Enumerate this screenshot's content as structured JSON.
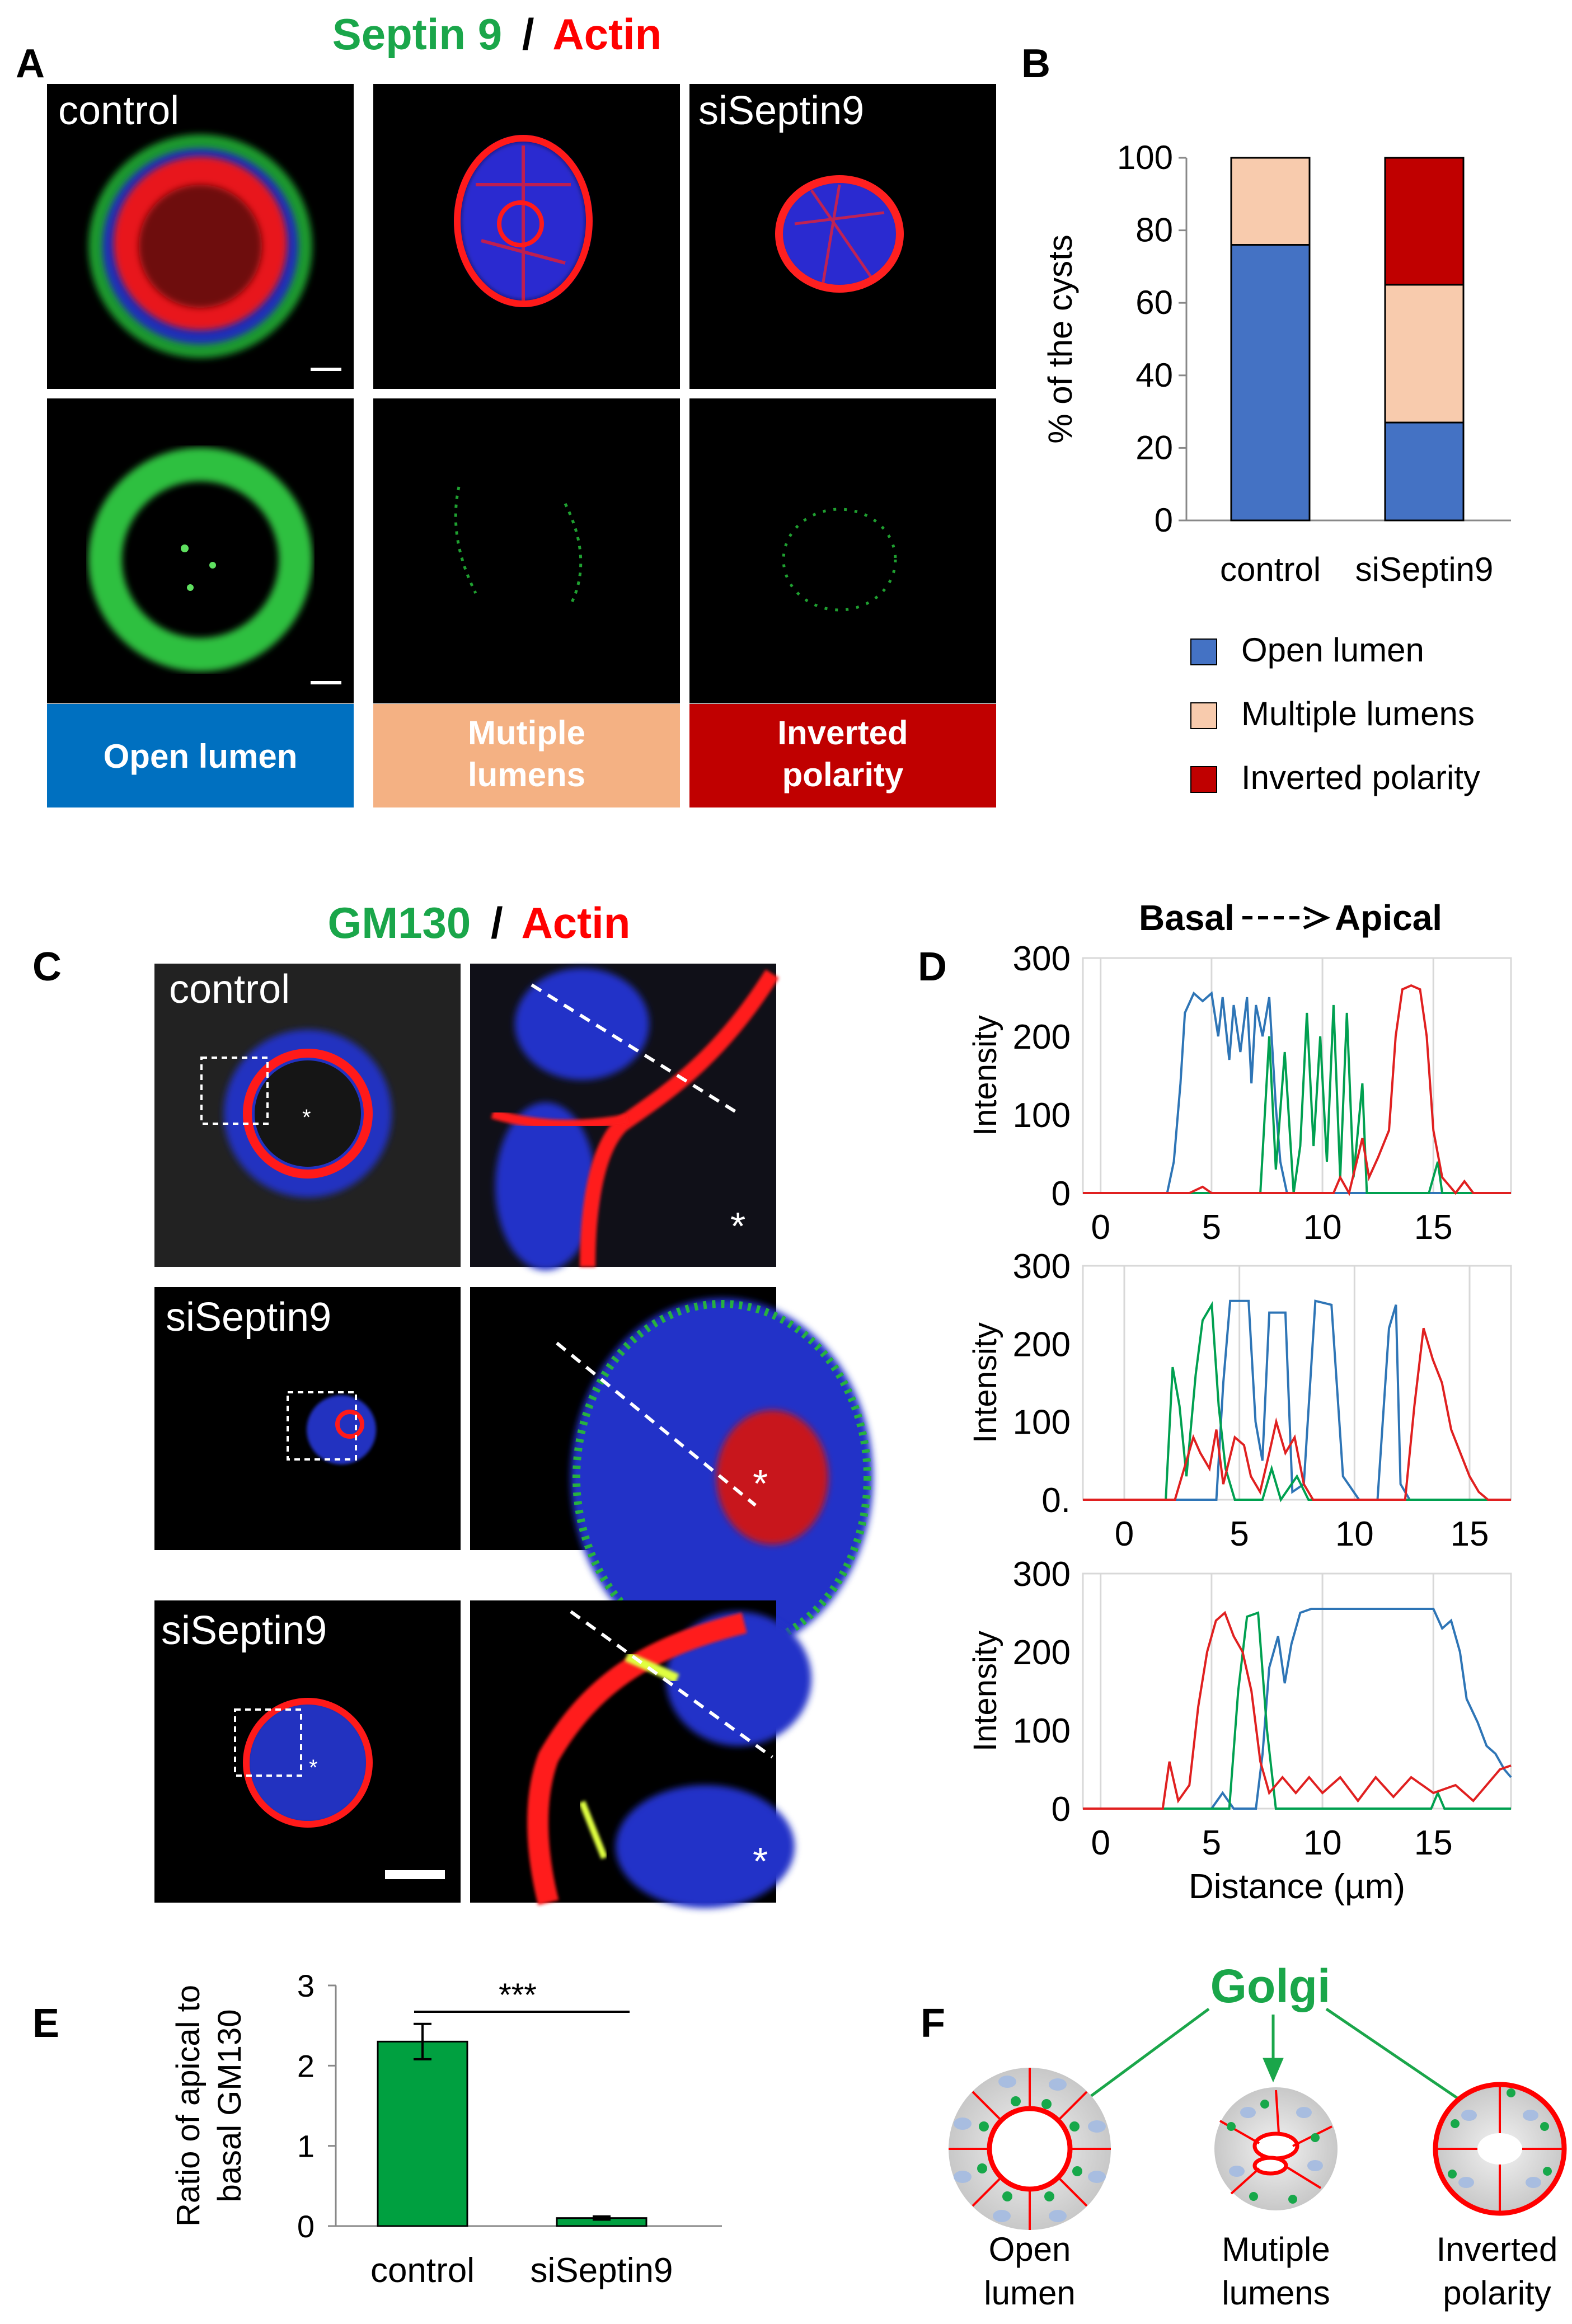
{
  "panel_letters": {
    "a": "A",
    "b": "B",
    "c": "C",
    "d": "D",
    "e": "E",
    "f": "F"
  },
  "panel_a": {
    "title_green": "Septin 9",
    "title_sep": "/",
    "title_red": "Actin",
    "label_control": "control",
    "label_si": "siSeptin9",
    "band_open": "Open lumen",
    "band_multiple_1": "Mutiple",
    "band_multiple_2": "lumens",
    "band_inverted_1": "Inverted",
    "band_inverted_2": "polarity"
  },
  "panel_c": {
    "title_green": "GM130",
    "title_sep": "/",
    "title_red": "Actin",
    "row1_label": "control",
    "row2_label": "siSeptin9",
    "row3_label": "siSeptin9",
    "lumen_mark": "*"
  },
  "panel_d": {
    "header_left": "Basal",
    "header_right": "Apical"
  },
  "panel_f": {
    "golgi": "Golgi",
    "open_1": "Open",
    "open_2": "lumen",
    "multiple_1": "Mutiple",
    "multiple_2": "lumens",
    "inverted_1": "Inverted",
    "inverted_2": "polarity"
  },
  "colors": {
    "green": "#1aa64a",
    "red": "#ff0000",
    "open": "#4472c4",
    "multiple": "#f8cbad",
    "inverted": "#c00000",
    "band_open": "#0070c0",
    "band_multiple": "#f4b183",
    "band_inverted": "#c00000",
    "trace_blue": "#2e75b6",
    "trace_green": "#00a050",
    "trace_red": "#e02020",
    "bar_green": "#00a040"
  },
  "chart_data": [
    {
      "type": "bar",
      "stacked": true,
      "categories": [
        "control",
        "siSeptin9"
      ],
      "series": [
        {
          "name": "Open lumen",
          "color": "#4472c4",
          "values": [
            76,
            27
          ]
        },
        {
          "name": "Multiple lumens",
          "color": "#f8cbad",
          "values": [
            24,
            38
          ]
        },
        {
          "name": "Inverted polarity",
          "color": "#c00000",
          "values": [
            0,
            35
          ]
        }
      ],
      "ylabel": "% of the cysts",
      "ylim": [
        0,
        100
      ],
      "yticks": [
        "0",
        "20",
        "40",
        "60",
        "80",
        "100"
      ],
      "legend": "bottom"
    },
    {
      "type": "line",
      "xticks": [
        "0",
        "5",
        "10",
        "15"
      ],
      "yticks": [
        "0",
        "100",
        "200",
        "300"
      ],
      "ylabel": "Intensity",
      "xlim": [
        -0.8,
        18.5
      ],
      "ylim": [
        0,
        300
      ],
      "series": [
        {
          "color": "#2e75b6",
          "points": [
            [
              -0.8,
              0
            ],
            [
              3.0,
              0
            ],
            [
              3.3,
              40
            ],
            [
              3.6,
              140
            ],
            [
              3.8,
              230
            ],
            [
              4.2,
              255
            ],
            [
              4.6,
              245
            ],
            [
              5.0,
              255
            ],
            [
              5.3,
              200
            ],
            [
              5.5,
              250
            ],
            [
              5.8,
              170
            ],
            [
              6.0,
              240
            ],
            [
              6.3,
              180
            ],
            [
              6.6,
              250
            ],
            [
              6.8,
              140
            ],
            [
              7.0,
              240
            ],
            [
              7.3,
              200
            ],
            [
              7.6,
              250
            ],
            [
              7.9,
              110
            ],
            [
              8.1,
              40
            ],
            [
              8.4,
              0
            ],
            [
              18.5,
              0
            ]
          ]
        },
        {
          "color": "#00a050",
          "points": [
            [
              -0.8,
              0
            ],
            [
              7.2,
              0
            ],
            [
              7.6,
              200
            ],
            [
              7.9,
              30
            ],
            [
              8.3,
              180
            ],
            [
              8.7,
              0
            ],
            [
              9.0,
              60
            ],
            [
              9.3,
              230
            ],
            [
              9.6,
              60
            ],
            [
              9.9,
              200
            ],
            [
              10.2,
              40
            ],
            [
              10.5,
              240
            ],
            [
              10.8,
              20
            ],
            [
              11.1,
              230
            ],
            [
              11.4,
              20
            ],
            [
              11.8,
              140
            ],
            [
              12.0,
              0
            ],
            [
              14.8,
              0
            ],
            [
              15.2,
              40
            ],
            [
              15.4,
              0
            ],
            [
              18.5,
              0
            ]
          ]
        },
        {
          "color": "#e02020",
          "points": [
            [
              -0.8,
              0
            ],
            [
              4.0,
              0
            ],
            [
              4.6,
              8
            ],
            [
              5.0,
              0
            ],
            [
              10.5,
              0
            ],
            [
              10.8,
              20
            ],
            [
              11.2,
              0
            ],
            [
              11.8,
              70
            ],
            [
              12.1,
              20
            ],
            [
              12.5,
              45
            ],
            [
              13.0,
              80
            ],
            [
              13.3,
              200
            ],
            [
              13.6,
              260
            ],
            [
              14.0,
              265
            ],
            [
              14.4,
              260
            ],
            [
              14.7,
              200
            ],
            [
              15.0,
              80
            ],
            [
              15.4,
              20
            ],
            [
              16.0,
              0
            ],
            [
              16.4,
              15
            ],
            [
              16.8,
              0
            ],
            [
              18.5,
              0
            ]
          ]
        }
      ]
    },
    {
      "type": "line",
      "xticks": [
        "0",
        "5",
        "10",
        "15"
      ],
      "yticks": [
        "0.",
        "100",
        "200",
        "300"
      ],
      "ylabel": "Intensity",
      "xlim": [
        -1.8,
        16.8
      ],
      "ylim": [
        0,
        300
      ],
      "series": [
        {
          "color": "#2e75b6",
          "points": [
            [
              -1.8,
              0
            ],
            [
              4.0,
              0
            ],
            [
              4.3,
              150
            ],
            [
              4.6,
              255
            ],
            [
              5.4,
              255
            ],
            [
              5.7,
              100
            ],
            [
              6.0,
              50
            ],
            [
              6.3,
              240
            ],
            [
              7.0,
              240
            ],
            [
              7.3,
              10
            ],
            [
              7.8,
              20
            ],
            [
              8.3,
              255
            ],
            [
              9.0,
              250
            ],
            [
              9.5,
              30
            ],
            [
              10.2,
              0
            ],
            [
              11.0,
              0
            ],
            [
              11.5,
              220
            ],
            [
              11.8,
              250
            ],
            [
              12.0,
              20
            ],
            [
              12.4,
              0
            ],
            [
              16.8,
              0
            ]
          ]
        },
        {
          "color": "#00a050",
          "points": [
            [
              -1.8,
              0
            ],
            [
              1.8,
              0
            ],
            [
              2.1,
              170
            ],
            [
              2.4,
              120
            ],
            [
              2.7,
              30
            ],
            [
              3.1,
              160
            ],
            [
              3.4,
              230
            ],
            [
              3.8,
              250
            ],
            [
              4.1,
              120
            ],
            [
              4.4,
              40
            ],
            [
              4.8,
              0
            ],
            [
              6.0,
              0
            ],
            [
              6.4,
              40
            ],
            [
              6.8,
              0
            ],
            [
              7.5,
              30
            ],
            [
              8.0,
              0
            ],
            [
              16.8,
              0
            ]
          ]
        },
        {
          "color": "#e02020",
          "points": [
            [
              -1.8,
              0
            ],
            [
              2.2,
              0
            ],
            [
              2.6,
              40
            ],
            [
              3.0,
              80
            ],
            [
              3.3,
              60
            ],
            [
              3.7,
              40
            ],
            [
              4.0,
              90
            ],
            [
              4.3,
              20
            ],
            [
              4.8,
              80
            ],
            [
              5.2,
              70
            ],
            [
              5.5,
              30
            ],
            [
              5.9,
              10
            ],
            [
              6.3,
              60
            ],
            [
              6.6,
              100
            ],
            [
              7.0,
              60
            ],
            [
              7.4,
              80
            ],
            [
              7.8,
              20
            ],
            [
              8.2,
              0
            ],
            [
              12.2,
              0
            ],
            [
              12.6,
              120
            ],
            [
              13.0,
              220
            ],
            [
              13.4,
              180
            ],
            [
              13.8,
              150
            ],
            [
              14.2,
              90
            ],
            [
              14.6,
              60
            ],
            [
              15.0,
              30
            ],
            [
              15.4,
              10
            ],
            [
              15.8,
              0
            ],
            [
              16.8,
              0
            ]
          ]
        }
      ]
    },
    {
      "type": "line",
      "xticks": [
        "0",
        "5",
        "10",
        "15"
      ],
      "yticks": [
        "0",
        "100",
        "200",
        "300"
      ],
      "ylabel": "Intensity",
      "xlabel": "Distance (µm)",
      "xlim": [
        -0.8,
        18.5
      ],
      "ylim": [
        0,
        300
      ],
      "series": [
        {
          "color": "#2e75b6",
          "points": [
            [
              -0.8,
              0
            ],
            [
              5.0,
              0
            ],
            [
              5.5,
              20
            ],
            [
              6.0,
              0
            ],
            [
              7.0,
              0
            ],
            [
              7.3,
              70
            ],
            [
              7.6,
              180
            ],
            [
              8.0,
              220
            ],
            [
              8.3,
              160
            ],
            [
              8.6,
              210
            ],
            [
              9.0,
              250
            ],
            [
              9.5,
              255
            ],
            [
              12.0,
              255
            ],
            [
              15.0,
              255
            ],
            [
              15.4,
              230
            ],
            [
              15.8,
              240
            ],
            [
              16.2,
              200
            ],
            [
              16.5,
              140
            ],
            [
              17.0,
              110
            ],
            [
              17.4,
              80
            ],
            [
              17.8,
              70
            ],
            [
              18.2,
              50
            ],
            [
              18.5,
              40
            ]
          ]
        },
        {
          "color": "#00a050",
          "points": [
            [
              -0.8,
              0
            ],
            [
              5.8,
              0
            ],
            [
              6.2,
              150
            ],
            [
              6.6,
              245
            ],
            [
              7.1,
              250
            ],
            [
              7.5,
              100
            ],
            [
              7.9,
              0
            ],
            [
              14.9,
              0
            ],
            [
              15.2,
              20
            ],
            [
              15.5,
              0
            ],
            [
              18.5,
              0
            ]
          ]
        },
        {
          "color": "#e02020",
          "points": [
            [
              -0.8,
              0
            ],
            [
              2.8,
              0
            ],
            [
              3.1,
              60
            ],
            [
              3.5,
              10
            ],
            [
              4.0,
              30
            ],
            [
              4.4,
              130
            ],
            [
              4.8,
              200
            ],
            [
              5.2,
              240
            ],
            [
              5.6,
              250
            ],
            [
              6.0,
              220
            ],
            [
              6.4,
              200
            ],
            [
              6.8,
              150
            ],
            [
              7.2,
              60
            ],
            [
              7.6,
              20
            ],
            [
              8.2,
              40
            ],
            [
              8.8,
              20
            ],
            [
              9.4,
              40
            ],
            [
              10.0,
              20
            ],
            [
              10.8,
              40
            ],
            [
              11.6,
              10
            ],
            [
              12.4,
              40
            ],
            [
              13.2,
              15
            ],
            [
              14.0,
              40
            ],
            [
              15.0,
              20
            ],
            [
              16.0,
              30
            ],
            [
              16.8,
              10
            ],
            [
              17.4,
              30
            ],
            [
              18.0,
              50
            ],
            [
              18.5,
              55
            ]
          ]
        }
      ]
    },
    {
      "type": "bar",
      "categories": [
        "control",
        "siSeptin9"
      ],
      "values": [
        2.3,
        0.1
      ],
      "errors": [
        0.22,
        0.02
      ],
      "ylabel": "Ratio of apical to basal GM130",
      "ylim": [
        0,
        3
      ],
      "yticks": [
        "0",
        "1",
        "2",
        "3"
      ],
      "significance": "***"
    }
  ]
}
